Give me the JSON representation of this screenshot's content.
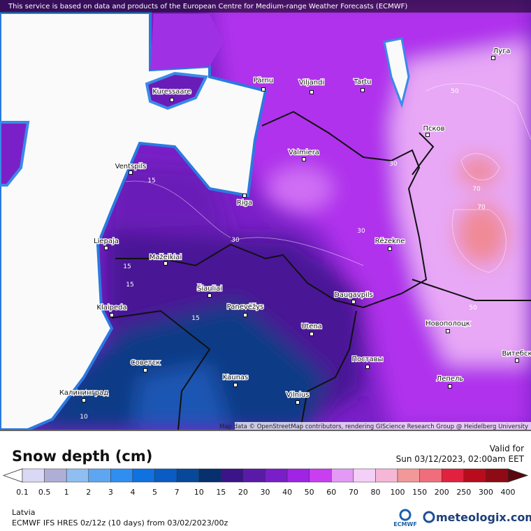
{
  "header": {
    "notice": "This service is based on data and products of the European Centre for Medium-range Weather Forecasts (ECMWF)"
  },
  "map": {
    "cities": [
      "Pärnu",
      "Viljandi",
      "Tartu",
      "Kuressaare",
      "Луга",
      "Псков",
      "Valmiera",
      "Ventspils",
      "Riga",
      "Liepaja",
      "Rēzekne",
      "Mažeikiai",
      "Šiauliai",
      "Panevėžys",
      "Daugavpils",
      "Klaipeda",
      "Utena",
      "Новополоцк",
      "Советск",
      "Поставы",
      "Kaunas",
      "Калининград",
      "Лепель",
      "Vilnius",
      "Витебск"
    ],
    "contour_labels": [
      50,
      70,
      70,
      50,
      30,
      30,
      30,
      15,
      15,
      15,
      15,
      10
    ],
    "attribution": "Map data © OpenStreetMap contributors, rendering GIScience Research Group @ Heidelberg University"
  },
  "legend": {
    "title": "Snow depth (cm)",
    "valid_label": "Valid for",
    "valid_time": "Sun 03/12/2023, 02:00am EET",
    "ticks": [
      0.1,
      0.5,
      1,
      2,
      3,
      4,
      5,
      7,
      10,
      15,
      20,
      30,
      40,
      50,
      60,
      70,
      80,
      100,
      150,
      200,
      250,
      300,
      400
    ],
    "colors": [
      "#d9d9f6",
      "#aeaed6",
      "#8ebef2",
      "#5ea6f2",
      "#2f8ef0",
      "#0f72e0",
      "#0a5cc4",
      "#08489a",
      "#06306e",
      "#3a1488",
      "#5a1aa8",
      "#7a1ec8",
      "#a024e4",
      "#c83ef0",
      "#e29af6",
      "#f4d0f8",
      "#f6b6d6",
      "#f29898",
      "#f06e7c",
      "#e0223e",
      "#b80c1c",
      "#8e0a14"
    ],
    "under_color": "#ffffff",
    "over_color": "#5a0810"
  },
  "footer": {
    "region": "Latvia",
    "model": "ECMWF IFS HRES 0z/12z (10 days) from 03/02/2023/00z",
    "logo": "ECMWF",
    "brand": "meteologix.com"
  }
}
